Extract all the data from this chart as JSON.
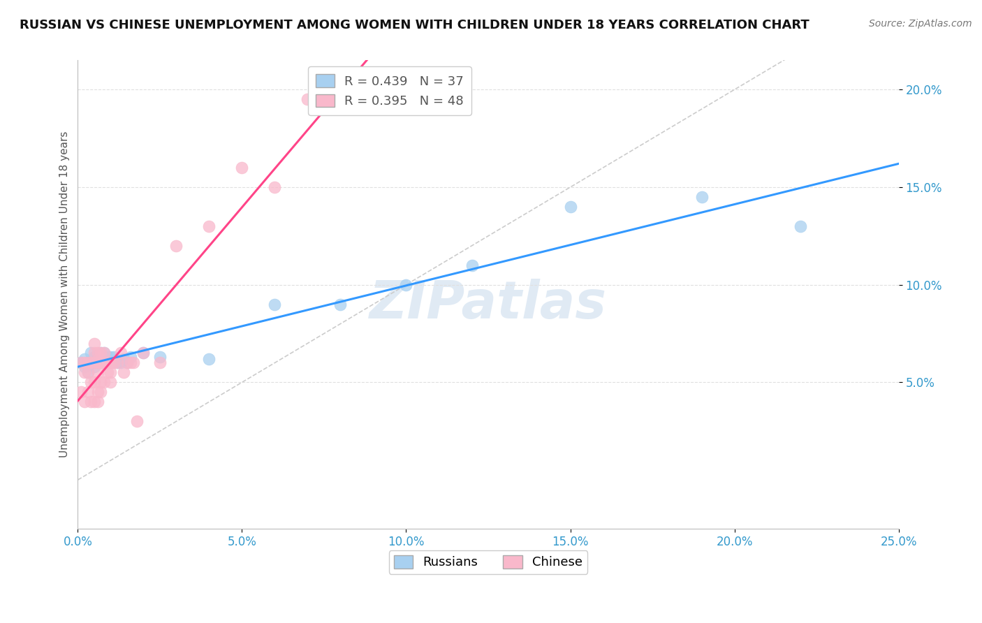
{
  "title": "RUSSIAN VS CHINESE UNEMPLOYMENT AMONG WOMEN WITH CHILDREN UNDER 18 YEARS CORRELATION CHART",
  "source": "Source: ZipAtlas.com",
  "ylabel": "Unemployment Among Women with Children Under 18 years",
  "xlim": [
    0.0,
    0.25
  ],
  "ylim": [
    -0.025,
    0.215
  ],
  "russian_R": 0.439,
  "russian_N": 37,
  "chinese_R": 0.395,
  "chinese_N": 48,
  "russian_color": "#a8d0f0",
  "chinese_color": "#f9b8cb",
  "russian_line_color": "#3399ff",
  "chinese_line_color": "#ff4488",
  "diagonal_line_color": "#cccccc",
  "background_color": "#ffffff",
  "grid_color": "#e0e0e0",
  "watermark": "ZIPatlas",
  "russian_x": [
    0.001,
    0.002,
    0.002,
    0.003,
    0.003,
    0.004,
    0.004,
    0.005,
    0.005,
    0.005,
    0.006,
    0.006,
    0.007,
    0.007,
    0.007,
    0.008,
    0.008,
    0.009,
    0.009,
    0.01,
    0.01,
    0.011,
    0.012,
    0.013,
    0.014,
    0.015,
    0.016,
    0.02,
    0.025,
    0.04,
    0.06,
    0.08,
    0.1,
    0.12,
    0.15,
    0.19,
    0.22
  ],
  "russian_y": [
    0.06,
    0.058,
    0.062,
    0.055,
    0.06,
    0.06,
    0.065,
    0.058,
    0.063,
    0.06,
    0.062,
    0.06,
    0.063,
    0.06,
    0.065,
    0.062,
    0.065,
    0.063,
    0.06,
    0.063,
    0.06,
    0.063,
    0.06,
    0.06,
    0.062,
    0.06,
    0.063,
    0.065,
    0.063,
    0.062,
    0.09,
    0.09,
    0.1,
    0.11,
    0.14,
    0.145,
    0.13
  ],
  "chinese_x": [
    0.001,
    0.001,
    0.002,
    0.002,
    0.002,
    0.003,
    0.003,
    0.003,
    0.004,
    0.004,
    0.004,
    0.005,
    0.005,
    0.005,
    0.005,
    0.005,
    0.006,
    0.006,
    0.006,
    0.006,
    0.006,
    0.007,
    0.007,
    0.007,
    0.007,
    0.008,
    0.008,
    0.008,
    0.009,
    0.009,
    0.01,
    0.01,
    0.01,
    0.011,
    0.012,
    0.013,
    0.014,
    0.015,
    0.016,
    0.017,
    0.018,
    0.02,
    0.025,
    0.03,
    0.04,
    0.05,
    0.06,
    0.07
  ],
  "chinese_y": [
    0.06,
    0.045,
    0.04,
    0.055,
    0.06,
    0.045,
    0.055,
    0.06,
    0.04,
    0.05,
    0.06,
    0.04,
    0.05,
    0.06,
    0.065,
    0.07,
    0.04,
    0.045,
    0.055,
    0.06,
    0.065,
    0.045,
    0.05,
    0.06,
    0.065,
    0.05,
    0.06,
    0.065,
    0.055,
    0.06,
    0.05,
    0.055,
    0.06,
    0.06,
    0.06,
    0.065,
    0.055,
    0.06,
    0.06,
    0.06,
    0.03,
    0.065,
    0.06,
    0.12,
    0.13,
    0.16,
    0.15,
    0.195
  ],
  "xlabel_vals": [
    0.0,
    0.05,
    0.1,
    0.15,
    0.2,
    0.25
  ],
  "xlabel_labels": [
    "0.0%",
    "5.0%",
    "10.0%",
    "15.0%",
    "20.0%",
    "25.0%"
  ],
  "ylabel_vals": [
    0.05,
    0.1,
    0.15,
    0.2
  ],
  "ylabel_labels": [
    "5.0%",
    "10.0%",
    "15.0%",
    "20.0%"
  ],
  "legend_box_color_russian": "#a8d0f0",
  "legend_box_color_chinese": "#f9b8cb",
  "title_fontsize": 13,
  "source_fontsize": 10,
  "tick_fontsize": 12,
  "ylabel_fontsize": 11
}
